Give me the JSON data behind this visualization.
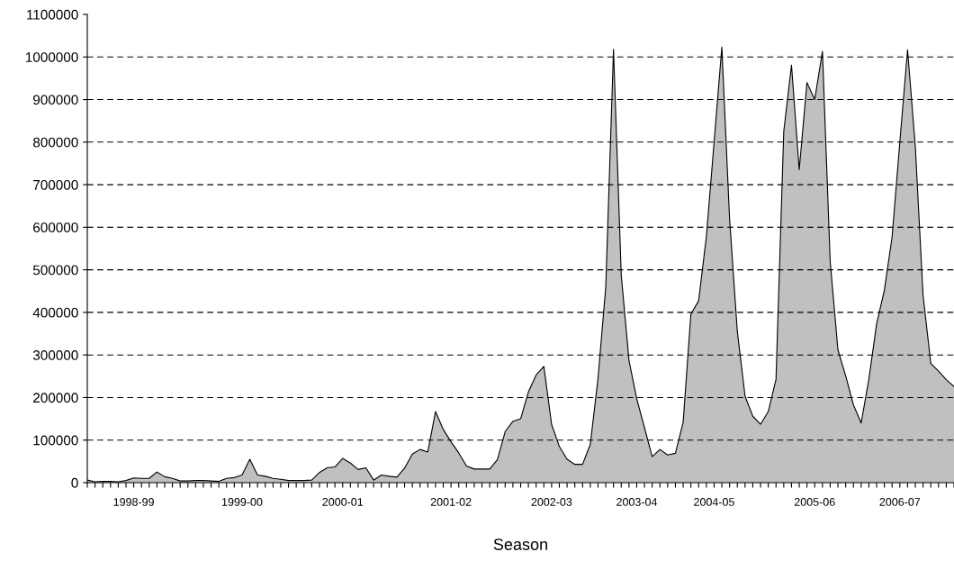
{
  "chart_data": {
    "type": "area",
    "xlabel": "Season",
    "categories": [
      null,
      null,
      null,
      null,
      null,
      null,
      "1998-99",
      null,
      null,
      null,
      null,
      null,
      null,
      null,
      null,
      null,
      null,
      null,
      null,
      null,
      "1999-00",
      null,
      null,
      null,
      null,
      null,
      null,
      null,
      null,
      null,
      null,
      null,
      null,
      "2000-01",
      null,
      null,
      null,
      null,
      null,
      null,
      null,
      null,
      null,
      null,
      null,
      null,
      null,
      "2001-02",
      null,
      null,
      null,
      null,
      null,
      null,
      null,
      null,
      null,
      null,
      null,
      null,
      "2002-03",
      null,
      null,
      null,
      null,
      null,
      null,
      null,
      null,
      null,
      null,
      "2003-04",
      null,
      null,
      null,
      null,
      null,
      null,
      null,
      null,
      null,
      "2004-05",
      null,
      null,
      null,
      null,
      null,
      null,
      null,
      null,
      null,
      null,
      null,
      null,
      "2005-06",
      null,
      null,
      null,
      null,
      null,
      null,
      null,
      null,
      null,
      null,
      "2006-07",
      null,
      null,
      null,
      null,
      null,
      null,
      null
    ],
    "series": [
      {
        "color": "#c0c0c0",
        "values": [
          6000,
          2000,
          3000,
          3000,
          2000,
          5000,
          11000,
          10000,
          10000,
          25000,
          14000,
          10000,
          4000,
          4000,
          5000,
          5000,
          4000,
          3000,
          10000,
          12000,
          18000,
          55000,
          18000,
          15000,
          10000,
          8000,
          5000,
          5000,
          5000,
          6000,
          24000,
          35000,
          37000,
          57000,
          46000,
          31000,
          35000,
          6000,
          18000,
          15000,
          13000,
          34000,
          67000,
          78000,
          72000,
          167000,
          125000,
          96000,
          70000,
          39000,
          32000,
          32000,
          32000,
          54000,
          120000,
          144000,
          150000,
          213000,
          253000,
          273000,
          137000,
          85000,
          55000,
          43000,
          43000,
          90000,
          245000,
          460000,
          1018000,
          488000,
          287000,
          197000,
          129000,
          61000,
          78000,
          65000,
          69000,
          142000,
          396000,
          427000,
          578000,
          800000,
          1023000,
          620000,
          355000,
          203000,
          156000,
          137000,
          167000,
          243000,
          825000,
          981000,
          735000,
          940000,
          900000,
          1013000,
          520000,
          312000,
          251000,
          183000,
          140000,
          243000,
          373000,
          452000,
          577000,
          800000,
          1017000,
          790000,
          441000,
          280000,
          262000,
          242000,
          226000
        ]
      }
    ],
    "ylim": [
      0,
      1100000
    ],
    "yticks": [
      0,
      100000,
      200000,
      300000,
      400000,
      500000,
      600000,
      700000,
      800000,
      900000,
      1000000,
      1100000
    ],
    "grid": "y"
  }
}
